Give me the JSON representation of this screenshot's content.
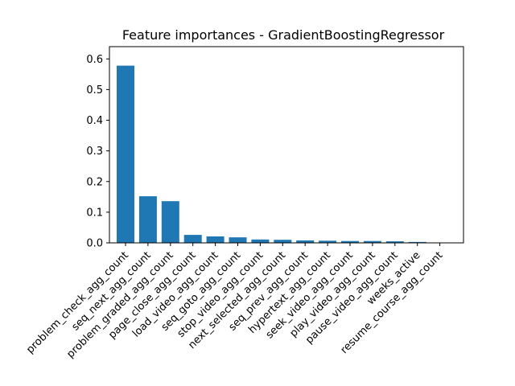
{
  "chart_data": {
    "type": "bar",
    "title": "Feature importances - GradientBoostingRegressor",
    "xlabel": "",
    "ylabel": "",
    "ylim": [
      0,
      0.64
    ],
    "yticks": [
      "0.0",
      "0.1",
      "0.2",
      "0.3",
      "0.4",
      "0.5",
      "0.6"
    ],
    "grid": false,
    "bar_color": "#1f77b4",
    "categories": [
      "problem_check_agg_count",
      "seq_next_agg_count",
      "problem_graded_agg_count",
      "page_close_agg_count",
      "load_video_agg_count",
      "seq_goto_agg_count",
      "stop_video_agg_count",
      "next_selected_agg_count",
      "seq_prev_agg_count",
      "hypertext_agg_count",
      "seek_video_agg_count",
      "play_video_agg_count",
      "pause_video_agg_count",
      "weeks_active",
      "resume_course_agg_count"
    ],
    "values": [
      0.578,
      0.152,
      0.136,
      0.026,
      0.021,
      0.018,
      0.011,
      0.01,
      0.008,
      0.007,
      0.006,
      0.006,
      0.005,
      0.003,
      0.001
    ]
  }
}
